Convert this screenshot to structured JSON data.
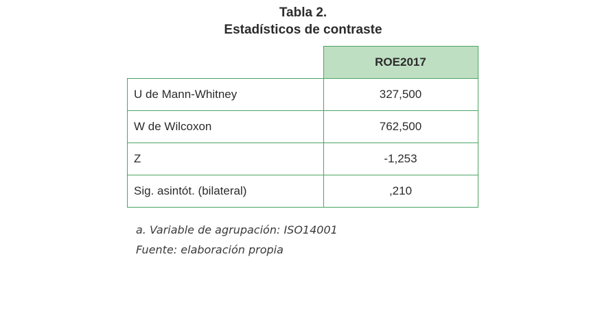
{
  "title": {
    "line1": "Tabla 2.",
    "line2": "Estadísticos de contraste"
  },
  "table": {
    "column_header": "ROE2017",
    "rows": [
      {
        "label": "U de Mann-Whitney",
        "value": "327,500"
      },
      {
        "label": "W de Wilcoxon",
        "value": "762,500"
      },
      {
        "label": "Z",
        "value": "-1,253"
      },
      {
        "label": "Sig. asintót. (bilateral)",
        "value": ",210"
      }
    ]
  },
  "notes": {
    "grouping": "a. Variable de agrupación: ISO14001",
    "source": "Fuente: elaboración propia"
  },
  "colors": {
    "border": "#4aa463",
    "header_fill": "#bfdfc2"
  }
}
